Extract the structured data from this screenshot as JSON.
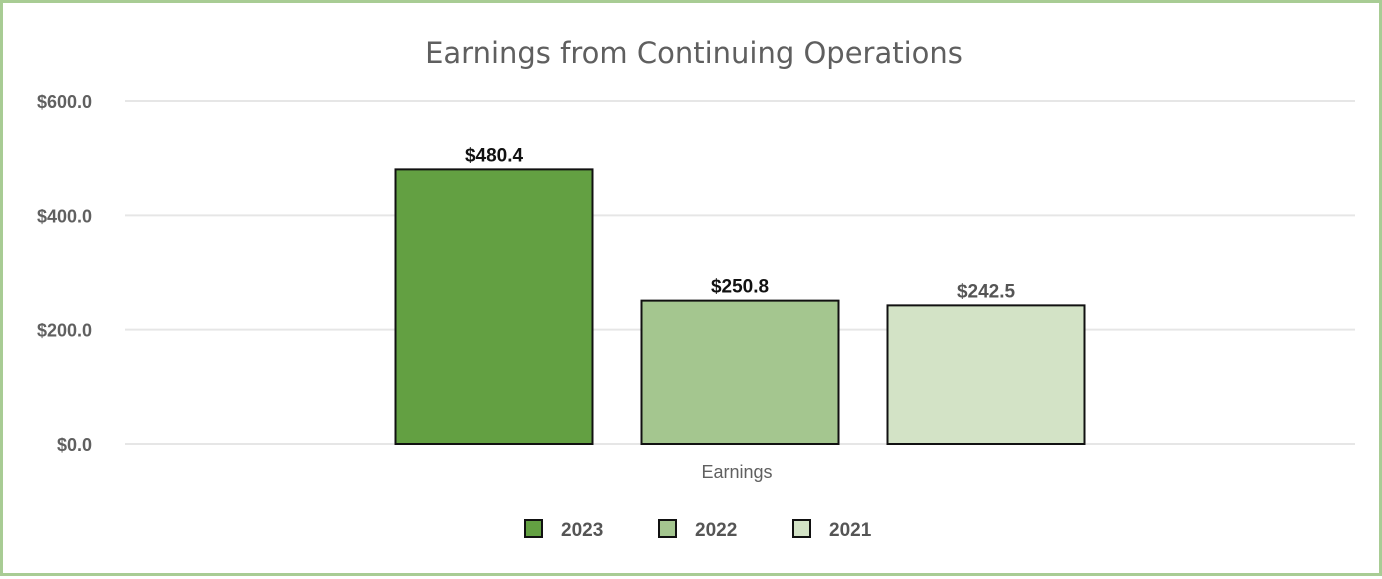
{
  "chart_data": {
    "type": "bar",
    "title": "Earnings from Continuing Operations",
    "xlabel": "",
    "ylabel": "",
    "categories": [
      "Earnings"
    ],
    "series": [
      {
        "name": "2023",
        "values": [
          480.4
        ],
        "color": "#63a042",
        "label": "$480.4",
        "label_color": "#111111"
      },
      {
        "name": "2022",
        "values": [
          250.8
        ],
        "color": "#a4c68f",
        "label": "$250.8",
        "label_color": "#111111"
      },
      {
        "name": "2021",
        "values": [
          242.5
        ],
        "color": "#d3e3c6",
        "label": "$242.5",
        "label_color": "#555555"
      }
    ],
    "ylim": [
      0,
      600
    ],
    "yticks": [
      0,
      200,
      400,
      600
    ],
    "ytick_labels": [
      "$0.0",
      "$200.0",
      "$400.0",
      "$600.0"
    ],
    "grid": true,
    "legend_position": "bottom"
  },
  "colors": {
    "frame_border": "#a8cc94",
    "gridline": "#e6e6e6",
    "bar_outline": "#111111"
  }
}
